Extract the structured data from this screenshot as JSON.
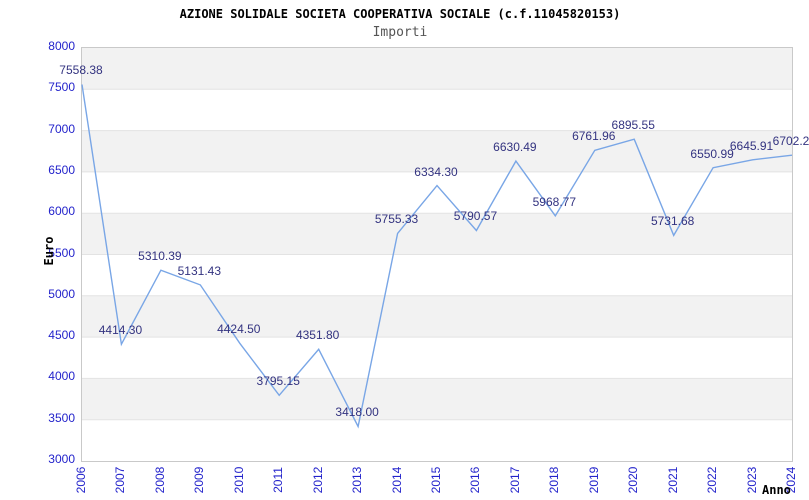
{
  "chart_data": {
    "type": "line",
    "title": "AZIONE SOLIDALE SOCIETA COOPERATIVA SOCIALE (c.f.11045820153)",
    "subtitle": "Importi",
    "xlabel": "Anno",
    "ylabel": "Euro",
    "x": [
      "2006",
      "2007",
      "2008",
      "2009",
      "2010",
      "2011",
      "2012",
      "2013",
      "2014",
      "2015",
      "2016",
      "2017",
      "2018",
      "2019",
      "2020",
      "2021",
      "2022",
      "2023",
      "2024"
    ],
    "values": [
      7558.38,
      4414.3,
      5310.39,
      5131.43,
      4424.5,
      3795.15,
      4351.8,
      3418.0,
      5755.33,
      6334.3,
      5790.57,
      6630.49,
      5968.77,
      6761.96,
      6895.55,
      5731.68,
      6550.99,
      6645.91,
      6702.2
    ],
    "point_labels": [
      "7558.38",
      "4414.30",
      "5310.39",
      "5131.43",
      "4424.50",
      "3795.15",
      "4351.80",
      "3418.00",
      "5755.33",
      "6334.30",
      "5790.57",
      "6630.49",
      "5968.77",
      "6761.96",
      "6895.55",
      "5731.68",
      "6550.99",
      "6645.91",
      "6702.2"
    ],
    "ylim": [
      3000,
      8000
    ],
    "ytick_step": 500,
    "grid": "horizontal gridlines with alternating gray/white bands every 500",
    "legend": "none",
    "colors": {
      "line": "#79a6e6",
      "tick_label": "#2323cb",
      "value_label": "#333380",
      "band_gray": "#f2f2f2",
      "gridline": "#e3e3e3",
      "plot_border": "#c9c9c9",
      "title": "#000000",
      "subtitle": "#555555"
    }
  }
}
